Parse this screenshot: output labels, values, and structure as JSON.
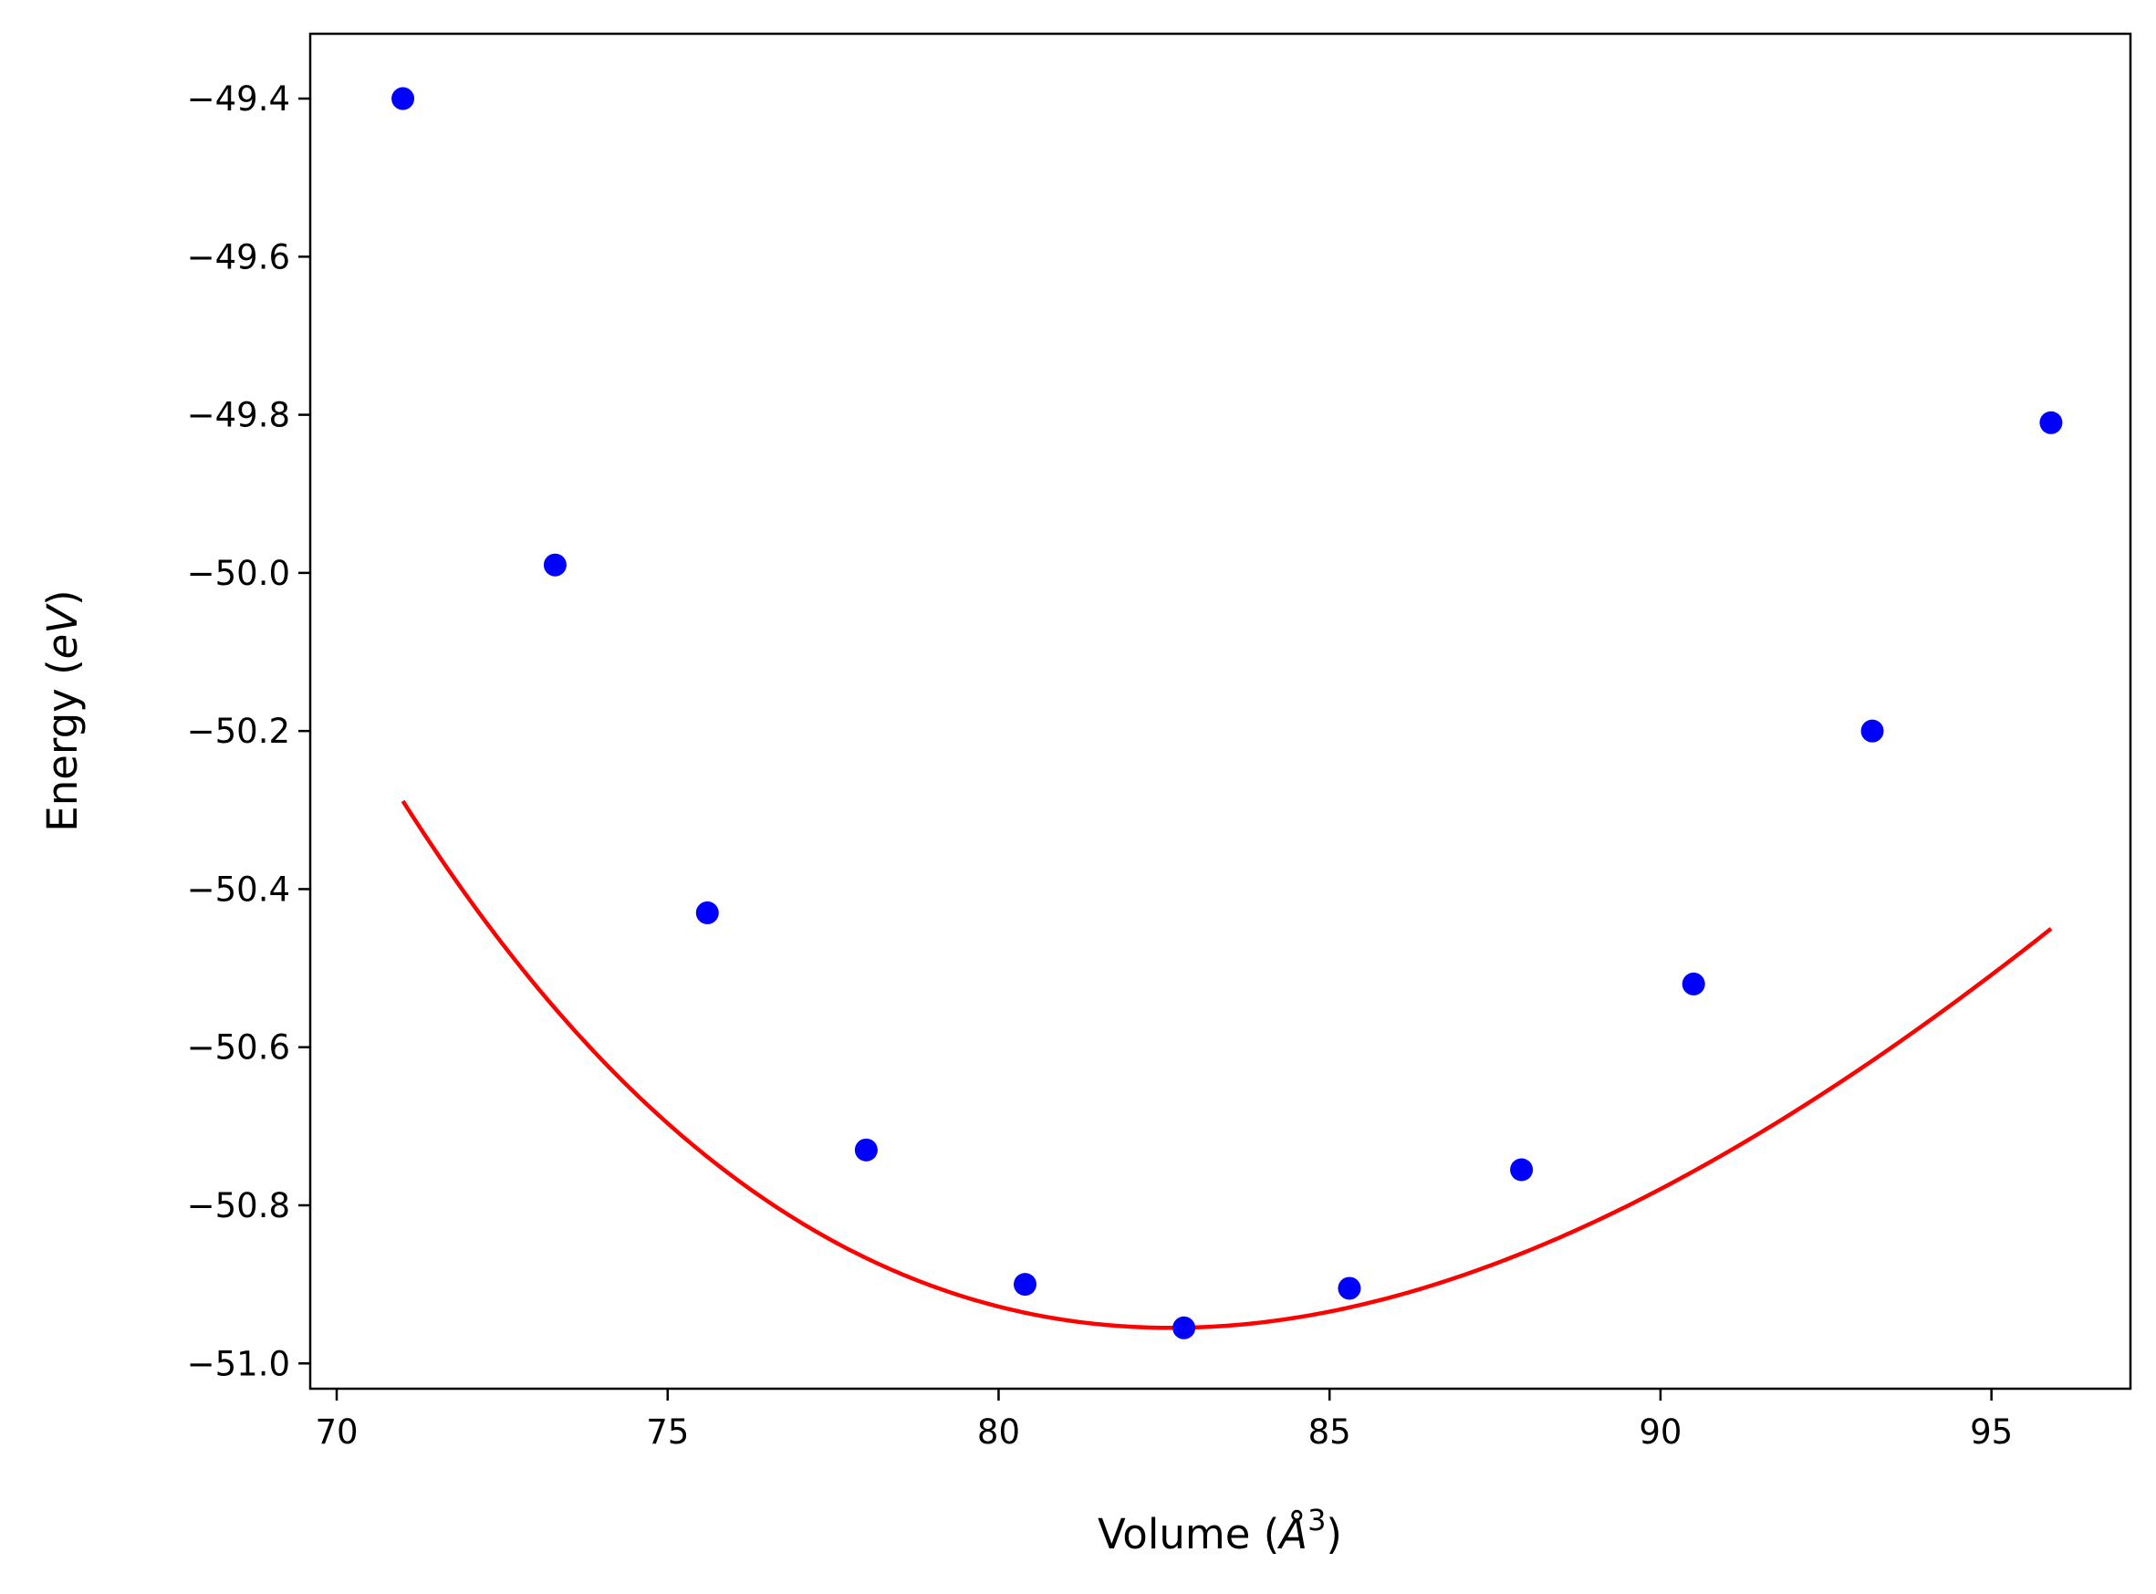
{
  "chart_data": {
    "type": "scatter",
    "xlabel": "Volume",
    "xlabel_unit_base": "Å",
    "xlabel_unit_exp": "3",
    "ylabel": "Energy",
    "ylabel_unit": "eV",
    "xlim": [
      69.6,
      97.1
    ],
    "ylim": [
      -51.032,
      -49.318
    ],
    "xticks": [
      70,
      75,
      80,
      85,
      90,
      95
    ],
    "xtick_labels": [
      "70",
      "75",
      "80",
      "85",
      "90",
      "95"
    ],
    "yticks": [
      -49.4,
      -49.6,
      -49.8,
      -50.0,
      -50.2,
      -50.4,
      -50.6,
      -50.8,
      -51.0
    ],
    "ytick_labels": [
      "−49.4",
      "−49.6",
      "−49.8",
      "−50.0",
      "−50.2",
      "−50.4",
      "−50.6",
      "−50.8",
      "−51.0"
    ],
    "grid": false,
    "series": [
      {
        "kind": "scatter",
        "color": "#0000ff",
        "x": [
          71.0,
          73.3,
          75.6,
          78.0,
          80.4,
          82.8,
          85.3,
          87.9,
          90.5,
          93.2,
          95.9
        ],
        "y": [
          -49.4,
          -49.99,
          -50.43,
          -50.73,
          -50.9,
          -50.955,
          -50.905,
          -50.755,
          -50.52,
          -50.2,
          -49.81
        ]
      },
      {
        "kind": "line",
        "color": "#ff0000",
        "fit": {
          "E0": -50.955,
          "V0": 82.6,
          "B0": 0.62,
          "B0_prime": 4.5
        },
        "x_range": [
          71.0,
          95.9
        ]
      }
    ]
  }
}
